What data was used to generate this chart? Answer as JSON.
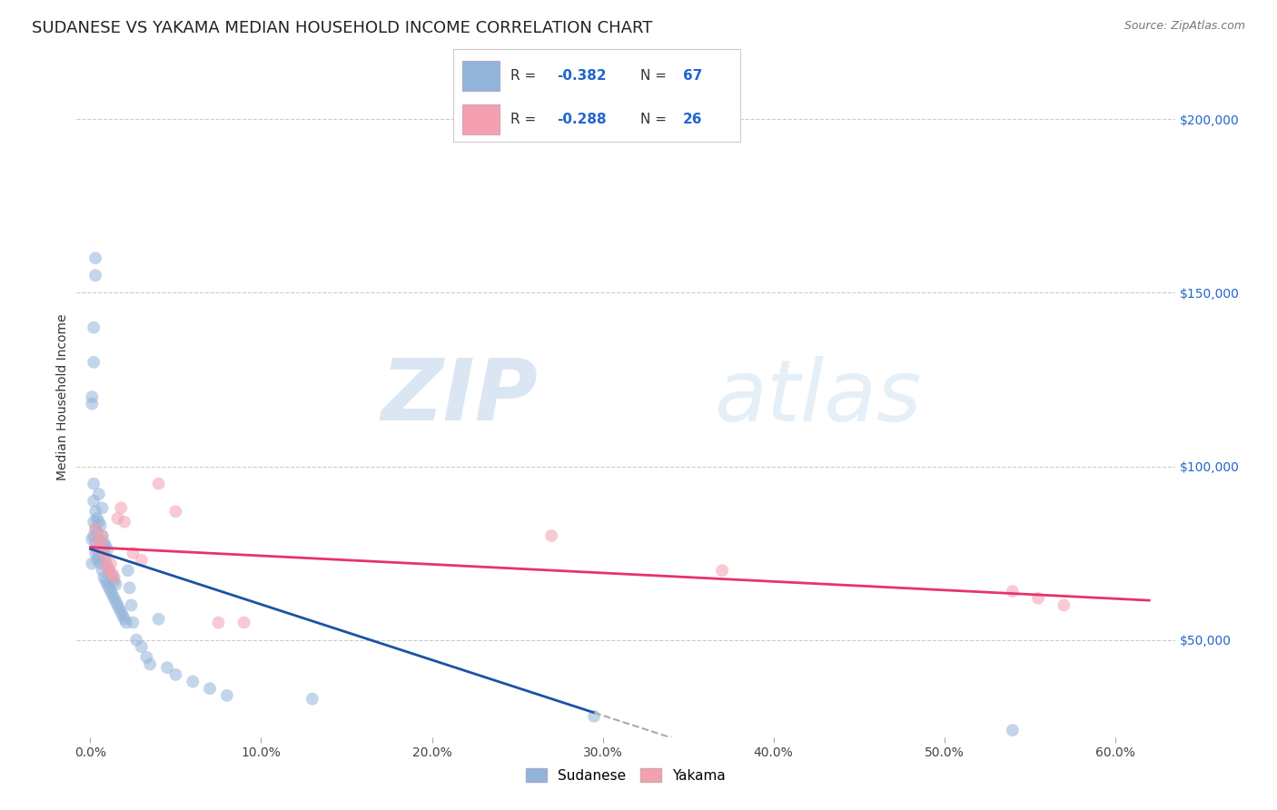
{
  "title": "SUDANESE VS YAKAMA MEDIAN HOUSEHOLD INCOME CORRELATION CHART",
  "source": "Source: ZipAtlas.com",
  "xlabel_ticks": [
    "0.0%",
    "10.0%",
    "20.0%",
    "30.0%",
    "40.0%",
    "50.0%",
    "60.0%"
  ],
  "xlabel_vals": [
    0.0,
    0.1,
    0.2,
    0.3,
    0.4,
    0.5,
    0.6
  ],
  "ylabel_ticks": [
    "$50,000",
    "$100,000",
    "$150,000",
    "$200,000"
  ],
  "ylabel_vals": [
    50000,
    100000,
    150000,
    200000
  ],
  "xlim": [
    -0.008,
    0.635
  ],
  "ylim": [
    22000,
    218000
  ],
  "watermark_zip": "ZIP",
  "watermark_atlas": "atlas",
  "legend_labels": [
    "Sudanese",
    "Yakama"
  ],
  "blue_color": "#92B4D9",
  "pink_color": "#F4A0B0",
  "blue_line_color": "#1A52A8",
  "pink_line_color": "#E8336A",
  "legend_value_color": "#2266CC",
  "right_tick_color": "#2266CC",
  "grid_color": "#CCCCCC",
  "bg_color": "#FFFFFF",
  "title_fontsize": 13,
  "axis_label_fontsize": 10,
  "tick_fontsize": 10,
  "marker_size": 100,
  "marker_alpha": 0.55,
  "sudanese_x": [
    0.001,
    0.001,
    0.002,
    0.002,
    0.002,
    0.002,
    0.003,
    0.003,
    0.003,
    0.003,
    0.004,
    0.004,
    0.004,
    0.004,
    0.005,
    0.005,
    0.005,
    0.005,
    0.006,
    0.006,
    0.006,
    0.007,
    0.007,
    0.007,
    0.007,
    0.008,
    0.008,
    0.008,
    0.009,
    0.009,
    0.009,
    0.01,
    0.01,
    0.01,
    0.011,
    0.011,
    0.012,
    0.012,
    0.013,
    0.013,
    0.014,
    0.014,
    0.015,
    0.015,
    0.016,
    0.017,
    0.018,
    0.019,
    0.02,
    0.021,
    0.022,
    0.023,
    0.024,
    0.025,
    0.027,
    0.03,
    0.033,
    0.035,
    0.04,
    0.045,
    0.05,
    0.06,
    0.07,
    0.08,
    0.13,
    0.295,
    0.54
  ],
  "sudanese_y": [
    79000,
    72000,
    80000,
    84000,
    90000,
    95000,
    78000,
    82000,
    87000,
    75000,
    76000,
    81000,
    85000,
    73000,
    74000,
    79000,
    84000,
    92000,
    72000,
    78000,
    83000,
    70000,
    75000,
    80000,
    88000,
    68000,
    73000,
    78000,
    67000,
    72000,
    77000,
    66000,
    71000,
    76000,
    65000,
    70000,
    64000,
    69000,
    63000,
    68000,
    62000,
    67000,
    61000,
    66000,
    60000,
    59000,
    58000,
    57000,
    56000,
    55000,
    70000,
    65000,
    60000,
    55000,
    50000,
    48000,
    45000,
    43000,
    56000,
    42000,
    40000,
    38000,
    36000,
    34000,
    33000,
    28000,
    24000
  ],
  "sudanese_y_high": [
    118000,
    120000,
    140000,
    155000,
    160000,
    130000
  ],
  "sudanese_x_high": [
    0.001,
    0.001,
    0.002,
    0.003,
    0.003,
    0.002
  ],
  "yakama_x": [
    0.003,
    0.004,
    0.005,
    0.006,
    0.007,
    0.008,
    0.009,
    0.01,
    0.011,
    0.012,
    0.013,
    0.014,
    0.016,
    0.018,
    0.02,
    0.025,
    0.03,
    0.04,
    0.05,
    0.075,
    0.09,
    0.27,
    0.37,
    0.54,
    0.555,
    0.57
  ],
  "yakama_y": [
    82000,
    79000,
    76000,
    78000,
    80000,
    75000,
    73000,
    71000,
    70000,
    72000,
    69000,
    68000,
    85000,
    88000,
    84000,
    75000,
    73000,
    95000,
    87000,
    55000,
    55000,
    80000,
    70000,
    64000,
    62000,
    60000
  ]
}
